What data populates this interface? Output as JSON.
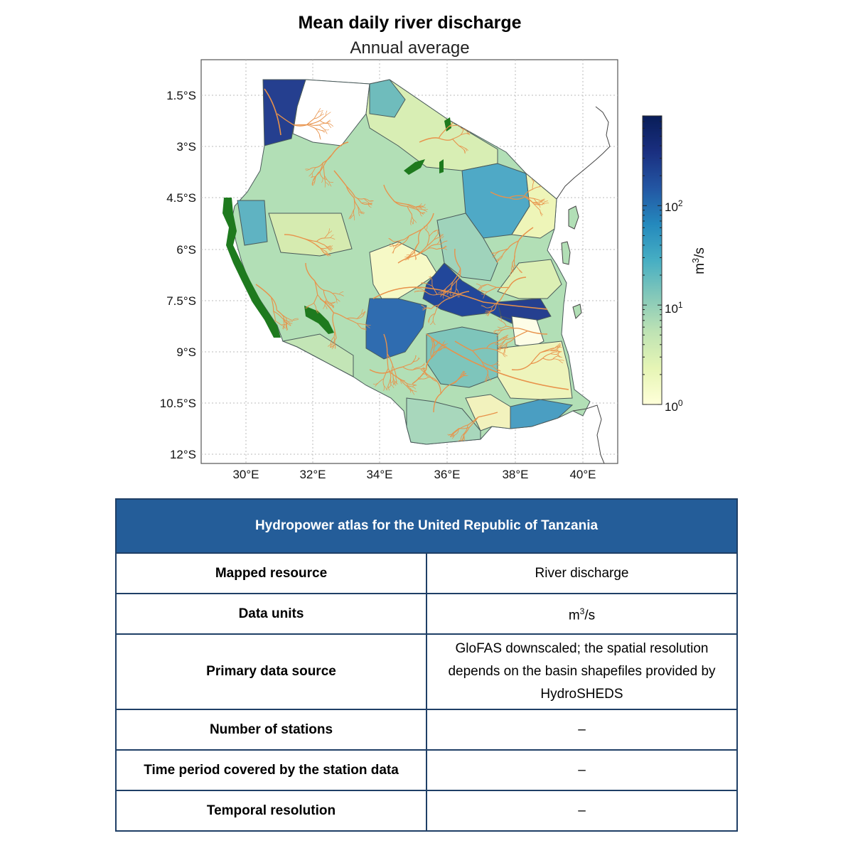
{
  "map": {
    "title": "Mean daily river discharge",
    "subtitle": "Annual average",
    "lat_labels": [
      "1.5°S",
      "3°S",
      "4.5°S",
      "6°S",
      "7.5°S",
      "9°S",
      "10.5°S",
      "12°S"
    ],
    "lon_labels": [
      "30°E",
      "32°E",
      "34°E",
      "36°E",
      "38°E",
      "40°E"
    ],
    "colorbar": {
      "label": "m",
      "label_sup": "3",
      "label_tail": "/s",
      "scale": "log",
      "range": [
        1,
        800
      ],
      "ticks": [
        {
          "base": "10",
          "exp": "2",
          "value": 100
        },
        {
          "base": "10",
          "exp": "1",
          "value": 10
        },
        {
          "base": "10",
          "exp": "0",
          "value": 1
        }
      ],
      "colors": [
        "#ffffd9",
        "#e6f5b5",
        "#bfe3b4",
        "#84c8b9",
        "#46aec3",
        "#2489bd",
        "#2356a3",
        "#1a2f80",
        "#081d58"
      ]
    },
    "colors": {
      "river": "#e8924a",
      "protected_area": "#1e7a1e",
      "coastline": "#444444"
    }
  },
  "table": {
    "header": "Hydropower atlas for the United Republic of Tanzania",
    "rows": [
      {
        "key": "Mapped resource",
        "value": "River discharge"
      },
      {
        "key": "Data units",
        "value": "m",
        "value_sup": "3",
        "value_tail": "/s"
      },
      {
        "key": "Primary data source",
        "value": "GloFAS downscaled; the spatial resolution depends on the basin shapefiles provided by HydroSHEDS"
      },
      {
        "key": "Number of stations",
        "value": "–"
      },
      {
        "key": "Time period covered by the station data",
        "value": "–"
      },
      {
        "key": "Temporal resolution",
        "value": "–"
      }
    ]
  }
}
